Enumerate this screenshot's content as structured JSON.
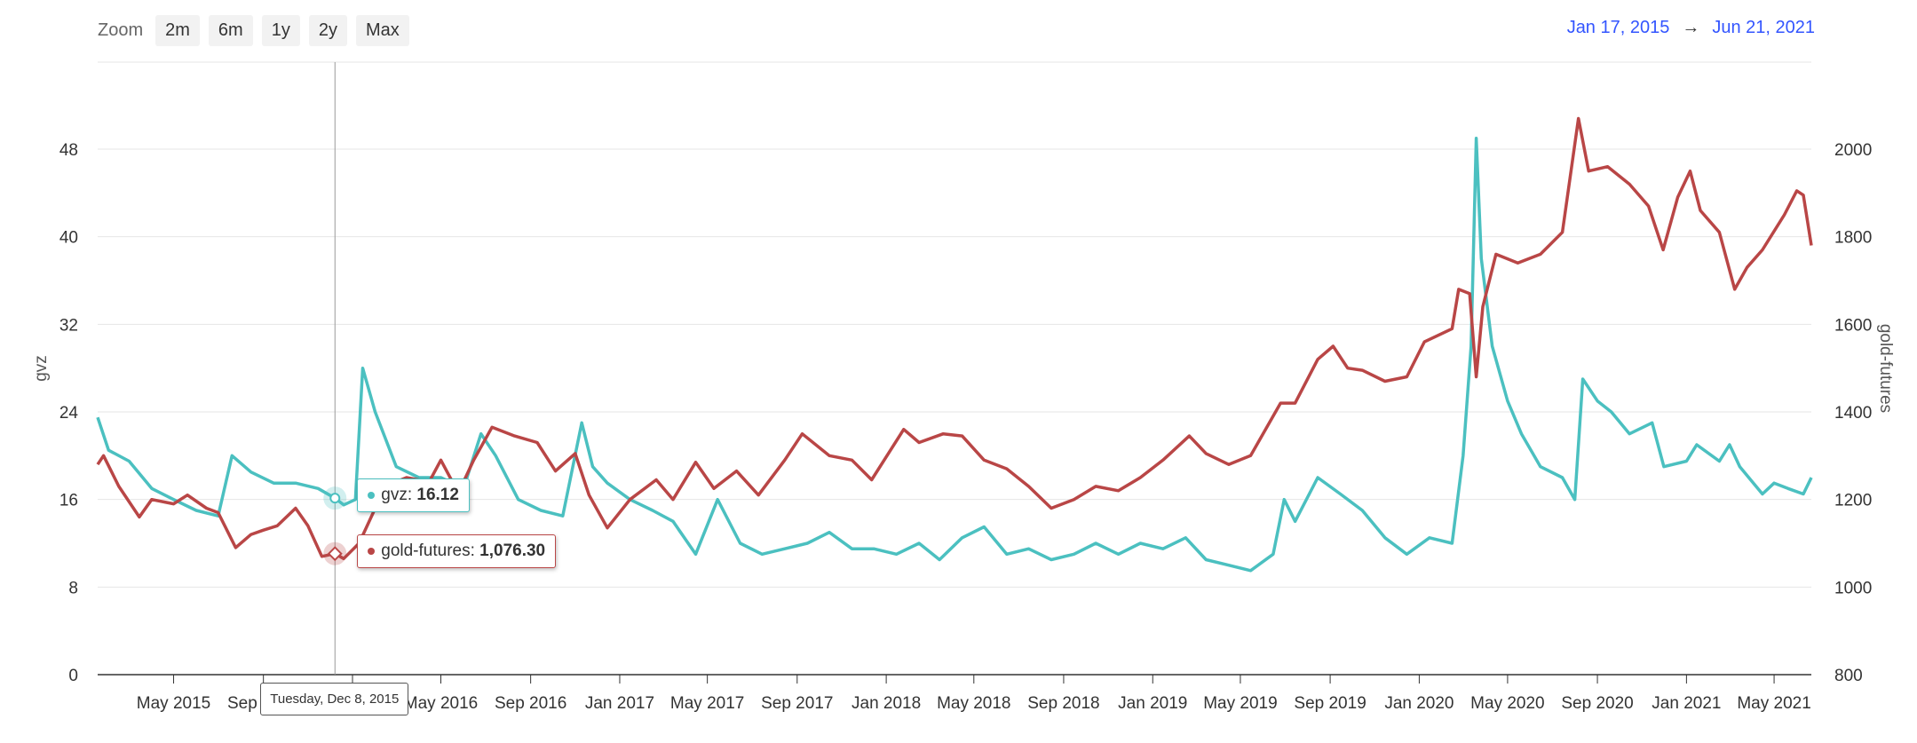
{
  "zoom": {
    "label": "Zoom",
    "buttons": [
      "2m",
      "6m",
      "1y",
      "2y",
      "Max"
    ]
  },
  "range": {
    "from": "Jan 17, 2015",
    "arrow": "→",
    "to": "Jun 21, 2021"
  },
  "colors": {
    "gvz": "#4bc0c0",
    "gold_futures": "#b94646",
    "range_link": "#3355ff"
  },
  "tooltip": {
    "date": "Tuesday, Dec 8, 2015",
    "gvz_label": "gvz: ",
    "gvz_value": "16.12",
    "gold_label": "gold-futures: ",
    "gold_value": "1,076.30"
  },
  "chart_data": {
    "type": "line",
    "x_start": "2015-01-17",
    "x_end": "2021-06-21",
    "x_ticks": [
      "May 2015",
      "Sep 2015",
      "Jan 2016",
      "May 2016",
      "Sep 2016",
      "Jan 2017",
      "May 2017",
      "Sep 2017",
      "Jan 2018",
      "May 2018",
      "Sep 2018",
      "Jan 2019",
      "May 2019",
      "Sep 2019",
      "Jan 2020",
      "May 2020",
      "Sep 2020",
      "Jan 2021",
      "May 2021"
    ],
    "y_left": {
      "label": "gvz",
      "min": 0,
      "max": 48,
      "ticks": [
        0,
        8,
        16,
        24,
        32,
        40,
        48
      ]
    },
    "y_right": {
      "label": "gold-futures",
      "min": 800,
      "max": 2000,
      "ticks": [
        800,
        1000,
        1200,
        1400,
        1600,
        1800,
        2000
      ]
    },
    "grid": true,
    "series": [
      {
        "name": "gvz",
        "axis": "left",
        "points": [
          [
            "2015-01-17",
            23.5
          ],
          [
            "2015-02-01",
            20.5
          ],
          [
            "2015-03-01",
            19.5
          ],
          [
            "2015-04-01",
            17.0
          ],
          [
            "2015-05-01",
            16.0
          ],
          [
            "2015-06-01",
            15.0
          ],
          [
            "2015-07-01",
            14.5
          ],
          [
            "2015-07-20",
            20.0
          ],
          [
            "2015-08-15",
            18.5
          ],
          [
            "2015-09-15",
            17.5
          ],
          [
            "2015-10-15",
            17.5
          ],
          [
            "2015-11-15",
            17.0
          ],
          [
            "2015-12-08",
            16.12
          ],
          [
            "2015-12-20",
            15.5
          ],
          [
            "2016-01-05",
            16.0
          ],
          [
            "2016-01-15",
            28.0
          ],
          [
            "2016-02-01",
            24.0
          ],
          [
            "2016-03-01",
            19.0
          ],
          [
            "2016-04-01",
            18.0
          ],
          [
            "2016-05-01",
            18.0
          ],
          [
            "2016-06-01",
            17.0
          ],
          [
            "2016-06-25",
            22.0
          ],
          [
            "2016-07-15",
            20.0
          ],
          [
            "2016-08-15",
            16.0
          ],
          [
            "2016-09-15",
            15.0
          ],
          [
            "2016-10-15",
            14.5
          ],
          [
            "2016-11-10",
            23.0
          ],
          [
            "2016-11-25",
            19.0
          ],
          [
            "2016-12-15",
            17.5
          ],
          [
            "2017-01-15",
            16.0
          ],
          [
            "2017-02-15",
            15.0
          ],
          [
            "2017-03-15",
            14.0
          ],
          [
            "2017-04-15",
            11.0
          ],
          [
            "2017-05-15",
            16.0
          ],
          [
            "2017-06-15",
            12.0
          ],
          [
            "2017-07-15",
            11.0
          ],
          [
            "2017-08-15",
            11.5
          ],
          [
            "2017-09-15",
            12.0
          ],
          [
            "2017-10-15",
            13.0
          ],
          [
            "2017-11-15",
            11.5
          ],
          [
            "2017-12-15",
            11.5
          ],
          [
            "2018-01-15",
            11.0
          ],
          [
            "2018-02-15",
            12.0
          ],
          [
            "2018-03-15",
            10.5
          ],
          [
            "2018-04-15",
            12.5
          ],
          [
            "2018-05-15",
            13.5
          ],
          [
            "2018-06-15",
            11.0
          ],
          [
            "2018-07-15",
            11.5
          ],
          [
            "2018-08-15",
            10.5
          ],
          [
            "2018-09-15",
            11.0
          ],
          [
            "2018-10-15",
            12.0
          ],
          [
            "2018-11-15",
            11.0
          ],
          [
            "2018-12-15",
            12.0
          ],
          [
            "2019-01-15",
            11.5
          ],
          [
            "2019-02-15",
            12.5
          ],
          [
            "2019-03-15",
            10.5
          ],
          [
            "2019-04-15",
            10.0
          ],
          [
            "2019-05-15",
            9.5
          ],
          [
            "2019-06-15",
            11.0
          ],
          [
            "2019-06-30",
            16.0
          ],
          [
            "2019-07-15",
            14.0
          ],
          [
            "2019-08-15",
            18.0
          ],
          [
            "2019-09-15",
            16.5
          ],
          [
            "2019-10-15",
            15.0
          ],
          [
            "2019-11-15",
            12.5
          ],
          [
            "2019-12-15",
            11.0
          ],
          [
            "2020-01-15",
            12.5
          ],
          [
            "2020-02-15",
            12.0
          ],
          [
            "2020-03-01",
            20.0
          ],
          [
            "2020-03-12",
            30.0
          ],
          [
            "2020-03-19",
            49.0
          ],
          [
            "2020-03-26",
            38.0
          ],
          [
            "2020-04-10",
            30.0
          ],
          [
            "2020-05-01",
            25.0
          ],
          [
            "2020-05-20",
            22.0
          ],
          [
            "2020-06-15",
            19.0
          ],
          [
            "2020-07-15",
            18.0
          ],
          [
            "2020-08-01",
            16.0
          ],
          [
            "2020-08-12",
            27.0
          ],
          [
            "2020-09-01",
            25.0
          ],
          [
            "2020-09-20",
            24.0
          ],
          [
            "2020-10-15",
            22.0
          ],
          [
            "2020-11-15",
            23.0
          ],
          [
            "2020-12-01",
            19.0
          ],
          [
            "2021-01-01",
            19.5
          ],
          [
            "2021-01-15",
            21.0
          ],
          [
            "2021-02-15",
            19.5
          ],
          [
            "2021-03-01",
            21.0
          ],
          [
            "2021-03-15",
            19.0
          ],
          [
            "2021-04-15",
            16.5
          ],
          [
            "2021-05-01",
            17.5
          ],
          [
            "2021-05-20",
            17.0
          ],
          [
            "2021-06-10",
            16.5
          ],
          [
            "2021-06-21",
            18.0
          ]
        ]
      },
      {
        "name": "gold-futures",
        "axis": "right",
        "points": [
          [
            "2015-01-17",
            1280
          ],
          [
            "2015-01-25",
            1300
          ],
          [
            "2015-02-15",
            1230
          ],
          [
            "2015-03-15",
            1160
          ],
          [
            "2015-04-01",
            1200
          ],
          [
            "2015-05-01",
            1190
          ],
          [
            "2015-05-20",
            1210
          ],
          [
            "2015-06-15",
            1180
          ],
          [
            "2015-07-01",
            1170
          ],
          [
            "2015-07-25",
            1090
          ],
          [
            "2015-08-15",
            1120
          ],
          [
            "2015-09-01",
            1130
          ],
          [
            "2015-09-20",
            1140
          ],
          [
            "2015-10-15",
            1180
          ],
          [
            "2015-11-01",
            1140
          ],
          [
            "2015-11-20",
            1070
          ],
          [
            "2015-12-08",
            1076.3
          ],
          [
            "2015-12-20",
            1065
          ],
          [
            "2016-01-10",
            1100
          ],
          [
            "2016-02-15",
            1230
          ],
          [
            "2016-03-15",
            1250
          ],
          [
            "2016-04-15",
            1240
          ],
          [
            "2016-05-01",
            1290
          ],
          [
            "2016-05-25",
            1215
          ],
          [
            "2016-06-15",
            1290
          ],
          [
            "2016-07-10",
            1365
          ],
          [
            "2016-08-10",
            1345
          ],
          [
            "2016-09-10",
            1330
          ],
          [
            "2016-10-05",
            1265
          ],
          [
            "2016-11-01",
            1305
          ],
          [
            "2016-11-20",
            1210
          ],
          [
            "2016-12-15",
            1135
          ],
          [
            "2017-01-15",
            1200
          ],
          [
            "2017-02-20",
            1245
          ],
          [
            "2017-03-15",
            1200
          ],
          [
            "2017-04-15",
            1285
          ],
          [
            "2017-05-10",
            1225
          ],
          [
            "2017-06-10",
            1265
          ],
          [
            "2017-07-10",
            1210
          ],
          [
            "2017-08-15",
            1290
          ],
          [
            "2017-09-08",
            1350
          ],
          [
            "2017-10-15",
            1300
          ],
          [
            "2017-11-15",
            1290
          ],
          [
            "2017-12-12",
            1245
          ],
          [
            "2018-01-25",
            1360
          ],
          [
            "2018-02-15",
            1330
          ],
          [
            "2018-03-20",
            1350
          ],
          [
            "2018-04-15",
            1345
          ],
          [
            "2018-05-15",
            1290
          ],
          [
            "2018-06-15",
            1270
          ],
          [
            "2018-07-15",
            1230
          ],
          [
            "2018-08-15",
            1180
          ],
          [
            "2018-09-15",
            1200
          ],
          [
            "2018-10-15",
            1230
          ],
          [
            "2018-11-15",
            1220
          ],
          [
            "2018-12-15",
            1250
          ],
          [
            "2019-01-15",
            1290
          ],
          [
            "2019-02-20",
            1345
          ],
          [
            "2019-03-15",
            1305
          ],
          [
            "2019-04-15",
            1280
          ],
          [
            "2019-05-15",
            1300
          ],
          [
            "2019-06-25",
            1420
          ],
          [
            "2019-07-15",
            1420
          ],
          [
            "2019-08-15",
            1520
          ],
          [
            "2019-09-05",
            1550
          ],
          [
            "2019-09-25",
            1500
          ],
          [
            "2019-10-15",
            1495
          ],
          [
            "2019-11-15",
            1470
          ],
          [
            "2019-12-15",
            1480
          ],
          [
            "2020-01-08",
            1560
          ],
          [
            "2020-02-15",
            1590
          ],
          [
            "2020-02-24",
            1680
          ],
          [
            "2020-03-10",
            1670
          ],
          [
            "2020-03-19",
            1480
          ],
          [
            "2020-03-28",
            1640
          ],
          [
            "2020-04-15",
            1760
          ],
          [
            "2020-05-15",
            1740
          ],
          [
            "2020-06-15",
            1760
          ],
          [
            "2020-07-15",
            1810
          ],
          [
            "2020-08-06",
            2070
          ],
          [
            "2020-08-20",
            1950
          ],
          [
            "2020-09-15",
            1960
          ],
          [
            "2020-10-15",
            1920
          ],
          [
            "2020-11-10",
            1870
          ],
          [
            "2020-11-30",
            1770
          ],
          [
            "2020-12-20",
            1890
          ],
          [
            "2021-01-06",
            1950
          ],
          [
            "2021-01-20",
            1860
          ],
          [
            "2021-02-15",
            1810
          ],
          [
            "2021-03-08",
            1680
          ],
          [
            "2021-03-25",
            1730
          ],
          [
            "2021-04-15",
            1770
          ],
          [
            "2021-05-15",
            1850
          ],
          [
            "2021-06-01",
            1905
          ],
          [
            "2021-06-10",
            1895
          ],
          [
            "2021-06-21",
            1780
          ]
        ]
      }
    ]
  }
}
